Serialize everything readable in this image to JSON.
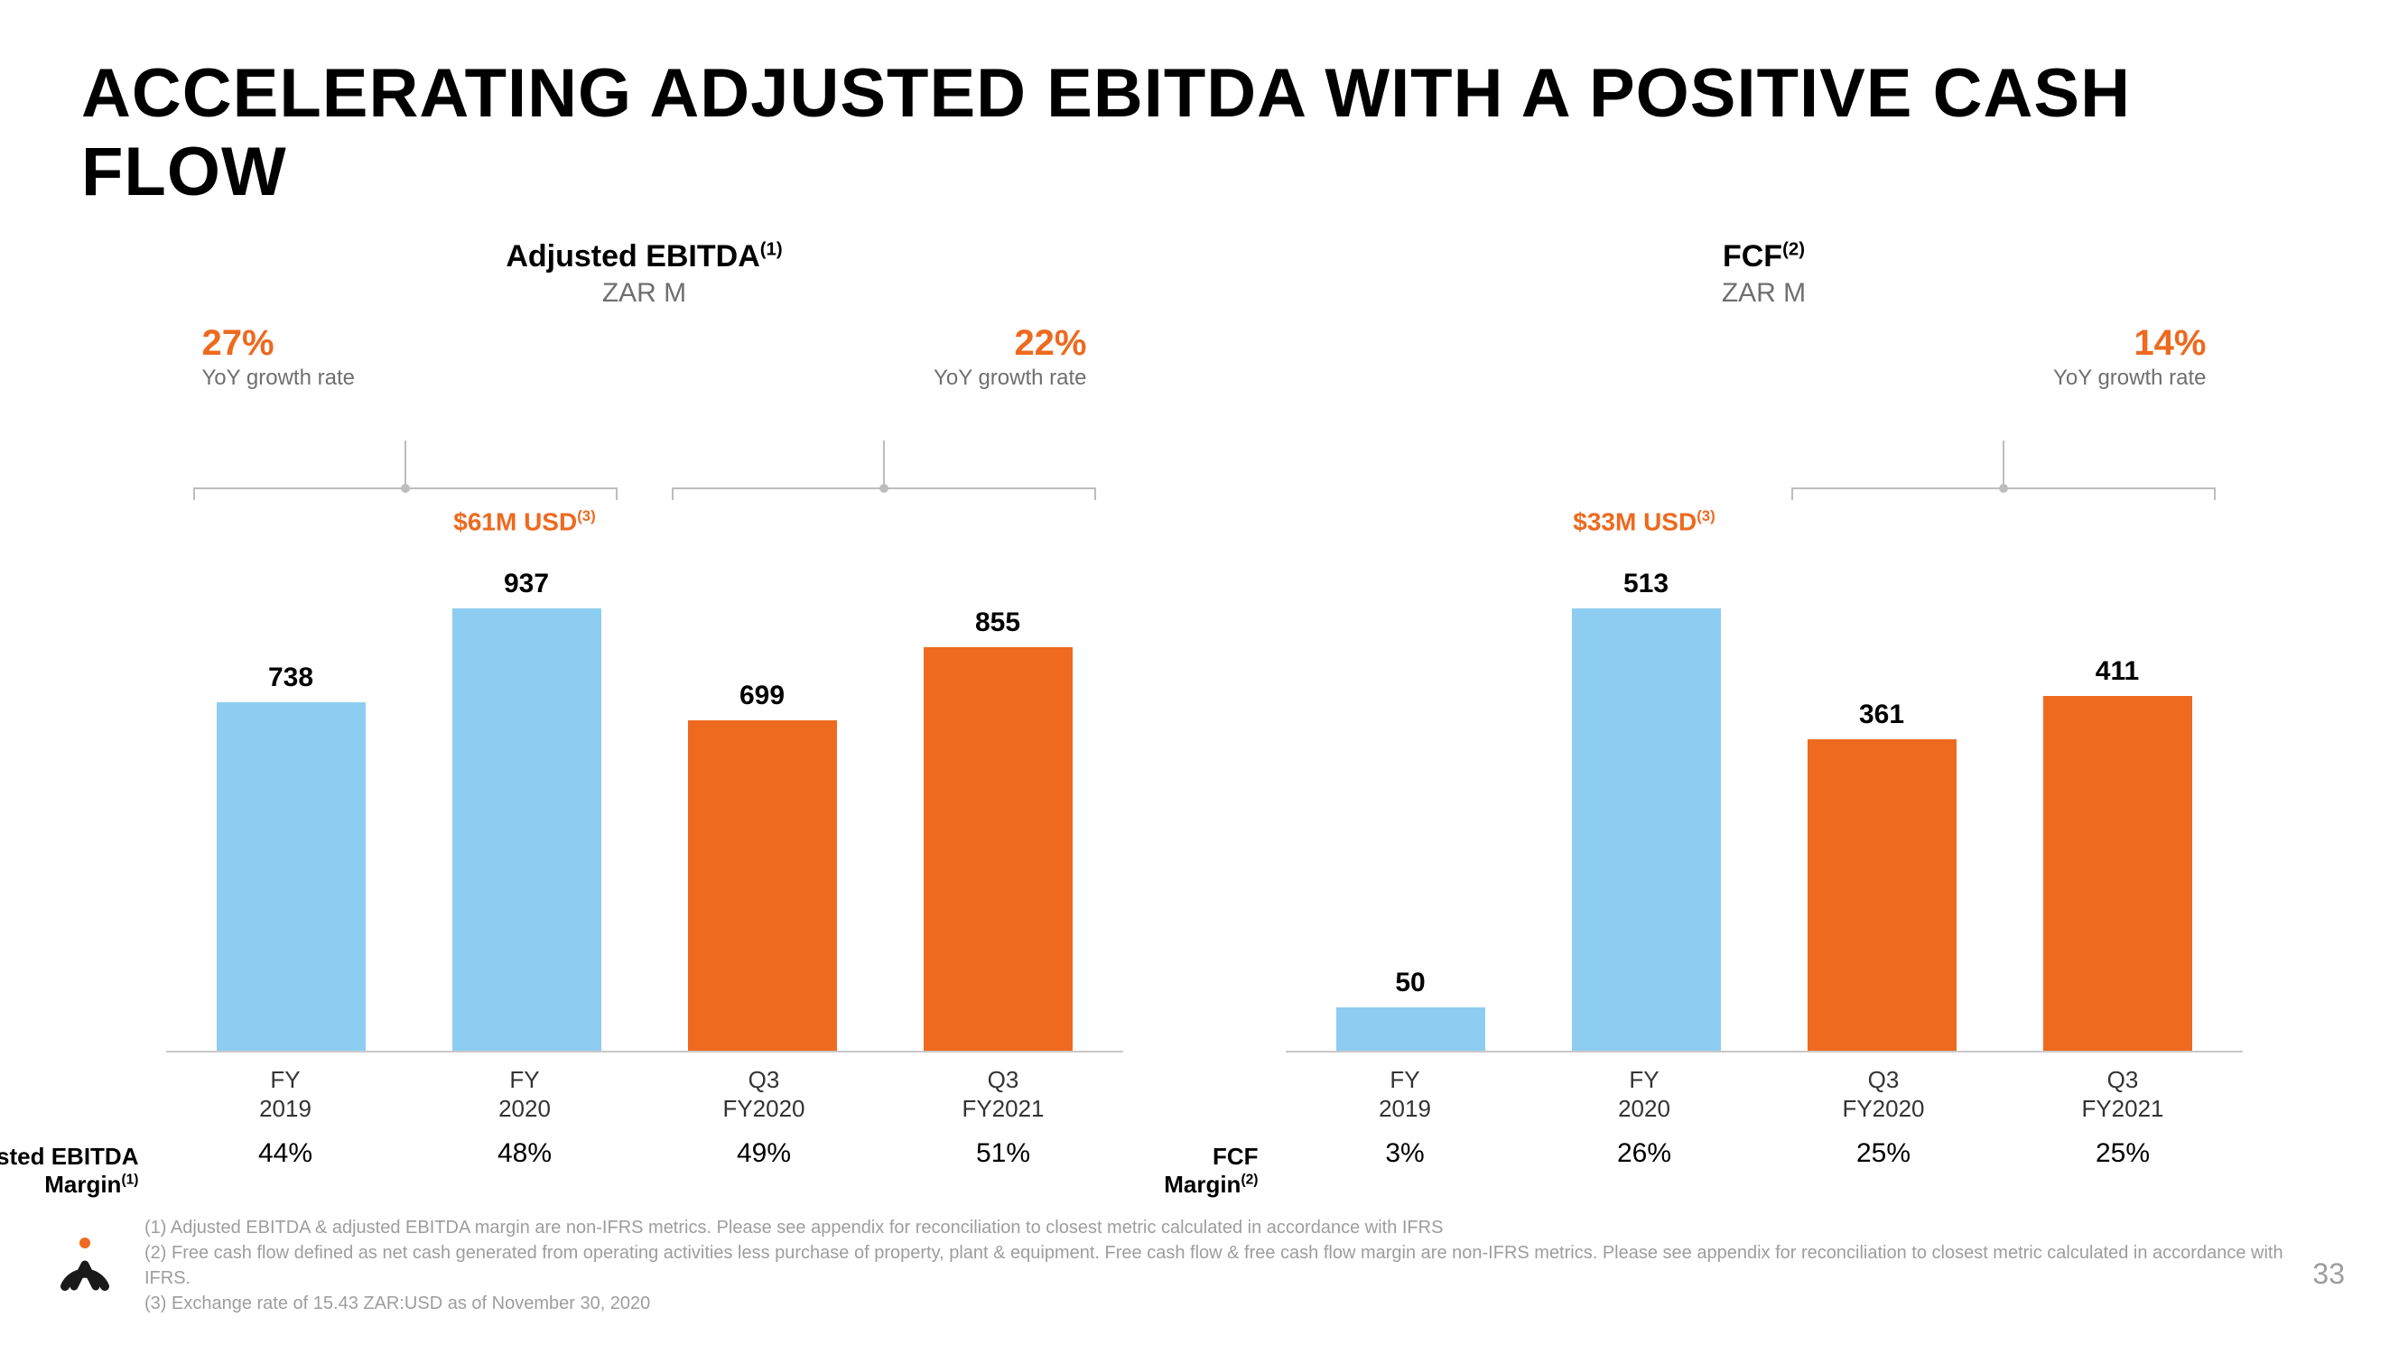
{
  "colors": {
    "accent": "#ed6a1f",
    "blue": "#8dcdf1",
    "orange": "#ed6a1f",
    "grey_text": "#6f6f6f",
    "bracket": "#bdbdbd",
    "footnote": "#9d9d9d"
  },
  "title": "ACCELERATING ADJUSTED EBITDA WITH A POSITIVE CASH FLOW",
  "page_number": "33",
  "footnotes": {
    "f1": "(1) Adjusted EBITDA & adjusted EBITDA margin are non-IFRS metrics. Please see appendix for reconciliation to closest metric calculated in accordance with IFRS",
    "f2": "(2) Free cash flow defined as net cash generated from operating activities less purchase of property, plant & equipment. Free cash flow & free cash flow margin are non-IFRS metrics. Please see appendix for reconciliation to closest metric calculated in accordance with IFRS.",
    "f3": "(3) Exchange rate of 15.43 ZAR:USD as of November 30, 2020"
  },
  "chart_ebitda": {
    "type": "bar",
    "title": "Adjusted EBITDA",
    "title_sup": "(1)",
    "subtitle": "ZAR M",
    "ymax": 937,
    "growth": [
      {
        "pct": "27%",
        "label": "YoY growth rate",
        "align": "left"
      },
      {
        "pct": "22%",
        "label": "YoY growth rate",
        "align": "right"
      }
    ],
    "usd_callout": {
      "col_index": 1,
      "text": "$61M USD",
      "sup": "(3)"
    },
    "bars": [
      {
        "label_top": "FY",
        "label_bot": "2019",
        "value": 738,
        "color": "#8dcdf1"
      },
      {
        "label_top": "FY",
        "label_bot": "2020",
        "value": 937,
        "color": "#8dcdf1"
      },
      {
        "label_top": "Q3",
        "label_bot": "FY2020",
        "value": 699,
        "color": "#ed6a1f"
      },
      {
        "label_top": "Q3",
        "label_bot": "FY2021",
        "value": 855,
        "color": "#ed6a1f"
      }
    ],
    "margin_label": "Adjusted EBITDA",
    "margin_label2": "Margin",
    "margin_sup": "(1)",
    "margins": [
      "44%",
      "48%",
      "49%",
      "51%"
    ]
  },
  "chart_fcf": {
    "type": "bar",
    "title": "FCF",
    "title_sup": "(2)",
    "subtitle": "ZAR M",
    "ymax": 513,
    "growth": [
      {
        "pct": "",
        "label": "",
        "align": "left"
      },
      {
        "pct": "14%",
        "label": "YoY growth rate",
        "align": "right"
      }
    ],
    "usd_callout": {
      "col_index": 1,
      "text": "$33M USD",
      "sup": "(3)"
    },
    "bars": [
      {
        "label_top": "FY",
        "label_bot": "2019",
        "value": 50,
        "color": "#8dcdf1"
      },
      {
        "label_top": "FY",
        "label_bot": "2020",
        "value": 513,
        "color": "#8dcdf1"
      },
      {
        "label_top": "Q3",
        "label_bot": "FY2020",
        "value": 361,
        "color": "#ed6a1f"
      },
      {
        "label_top": "Q3",
        "label_bot": "FY2021",
        "value": 411,
        "color": "#ed6a1f"
      }
    ],
    "margin_label": "FCF",
    "margin_label2": "Margin",
    "margin_sup": "(2)",
    "margins": [
      "3%",
      "26%",
      "25%",
      "25%"
    ]
  }
}
